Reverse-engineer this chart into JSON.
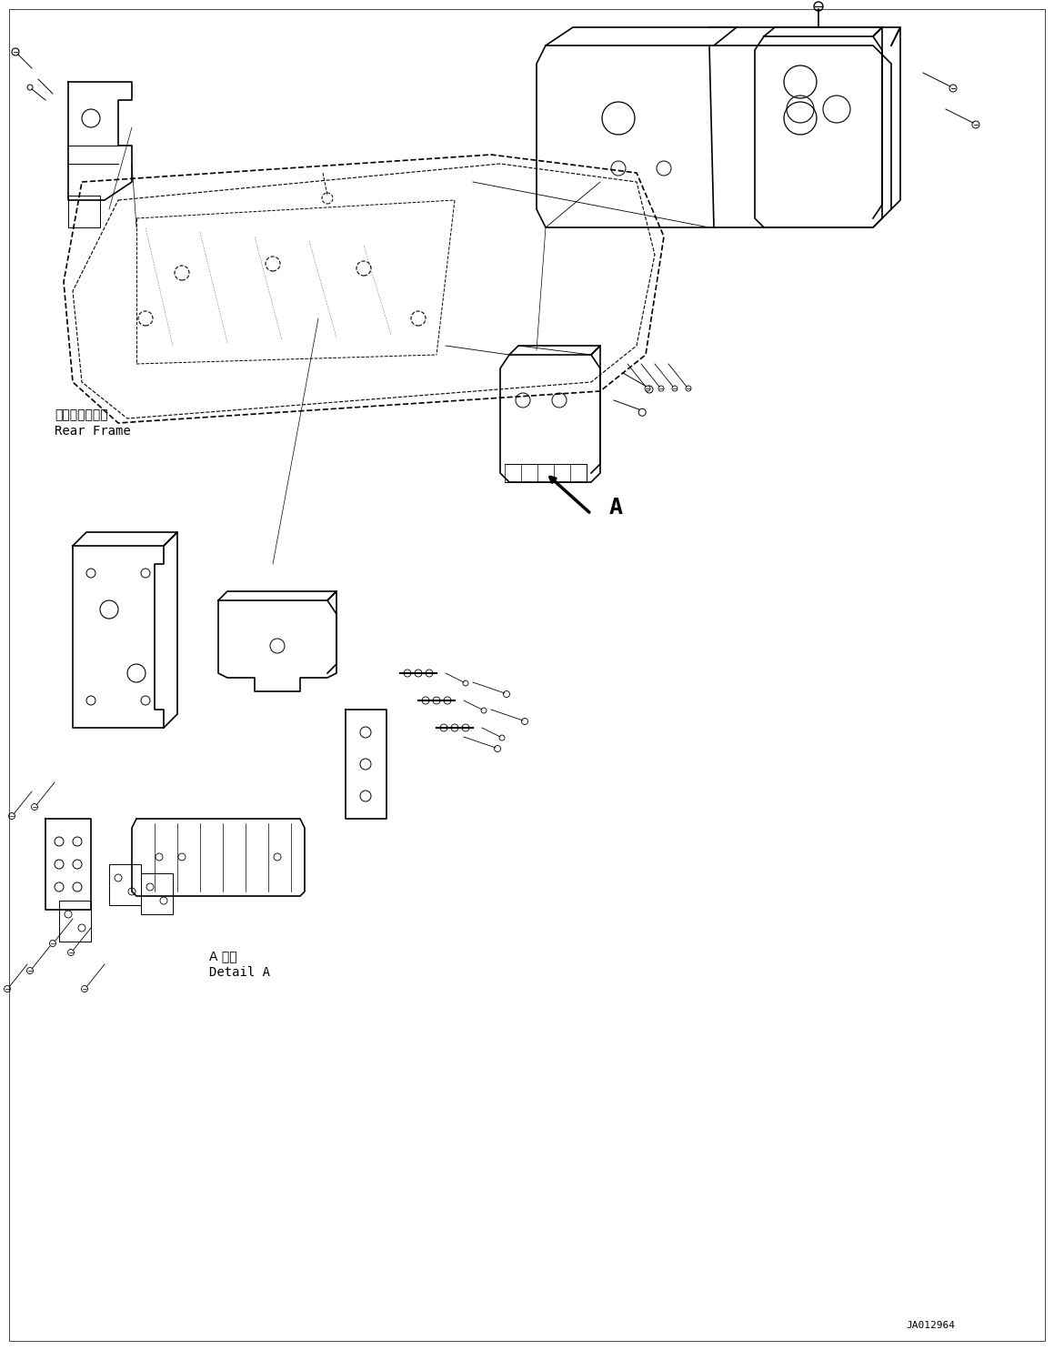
{
  "background_color": "#ffffff",
  "text_color": "#000000",
  "line_color": "#000000",
  "figure_width": 11.59,
  "figure_height": 14.84,
  "dpi": 100,
  "label_rear_frame_jp": "リヤーフレーム",
  "label_rear_frame_en": "Rear Frame",
  "label_detail_jp": "A 詳細",
  "label_detail_en": "Detail A",
  "label_A": "A",
  "part_number": "JA012964",
  "font_size_main": 10,
  "font_size_small": 8,
  "font_size_large": 14
}
